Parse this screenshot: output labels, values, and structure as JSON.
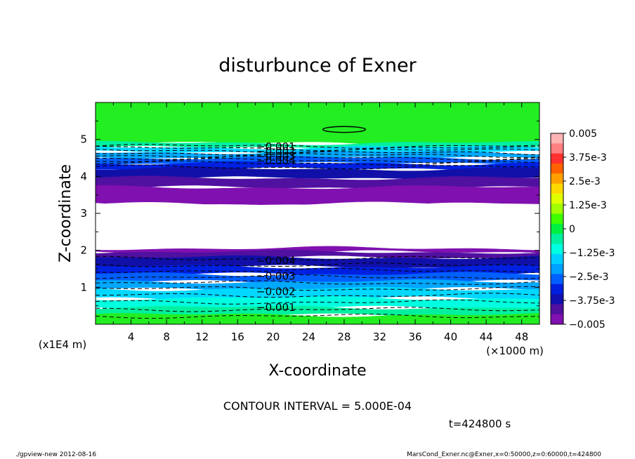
{
  "chart_data": {
    "type": "contour",
    "title": "disturbunce of Exner",
    "xlabel": "X-coordinate",
    "ylabel": "Z-coordinate",
    "x_unit": "(×1000 m)",
    "y_unit": "(x1E4 m)",
    "xlim": [
      0,
      50
    ],
    "ylim": [
      0,
      6
    ],
    "x_ticks": [
      "4",
      "8",
      "12",
      "16",
      "20",
      "24",
      "28",
      "32",
      "36",
      "40",
      "44",
      "48"
    ],
    "y_ticks": [
      "1",
      "2",
      "3",
      "4",
      "5"
    ],
    "contour_interval": "CONTOUR INTERVAL = 5.000E-04",
    "time_label": "t=424800 s",
    "footer_left": "./gpview-new   2012-08-16",
    "footer_right": "MarsCond_Exner.nc@Exner,x=0:50000,z=0:60000,t=424800",
    "colorbar": {
      "labels": [
        "0.005",
        "3.75e-3",
        "2.5e-3",
        "1.25e-3",
        "0",
        "−1.25e-3",
        "−2.5e-3",
        "−3.75e-3",
        "−0.005"
      ],
      "colors": [
        "#ffb4b4",
        "#ff8080",
        "#ff3030",
        "#ff6000",
        "#ffa000",
        "#ffd800",
        "#e0ff00",
        "#a0ff00",
        "#40ff00",
        "#00f040",
        "#00f0a0",
        "#00ffe0",
        "#00d0ff",
        "#00a0ff",
        "#0060ff",
        "#0020e0",
        "#1010b0",
        "#5010a0",
        "#8010b0"
      ]
    },
    "contour_labels": [
      {
        "text": "−0.001",
        "x": 20,
        "y": 4.8
      },
      {
        "text": "−0.002",
        "x": 20,
        "y": 4.68
      },
      {
        "text": "−0.003",
        "x": 20,
        "y": 4.55
      },
      {
        "text": "−0.004",
        "x": 20,
        "y": 4.42
      },
      {
        "text": "−0.004",
        "x": 20,
        "y": 1.72
      },
      {
        "text": "−0.003",
        "x": 20,
        "y": 1.3
      },
      {
        "text": "−0.002",
        "x": 20,
        "y": 0.88
      },
      {
        "text": "−0.001",
        "x": 20,
        "y": 0.46
      }
    ],
    "bands": [
      {
        "z0": 4.9,
        "z1": 6.0,
        "color": "#22ee22"
      },
      {
        "z0": 4.78,
        "z1": 4.9,
        "color": "#00f0a0"
      },
      {
        "z0": 4.65,
        "z1": 4.78,
        "color": "#00d8ff"
      },
      {
        "z0": 4.5,
        "z1": 4.65,
        "color": "#00a8ff"
      },
      {
        "z0": 4.35,
        "z1": 4.5,
        "color": "#0060ff"
      },
      {
        "z0": 4.2,
        "z1": 4.35,
        "color": "#0020e0"
      },
      {
        "z0": 3.95,
        "z1": 4.2,
        "color": "#1010a8"
      },
      {
        "z0": 3.7,
        "z1": 3.95,
        "color": "#5010a0"
      },
      {
        "z0": 3.25,
        "z1": 3.7,
        "color": "#8010b0"
      },
      {
        "z0": 2.05,
        "z1": 3.25,
        "color": "#ffffff"
      },
      {
        "z0": 1.95,
        "z1": 2.05,
        "color": "#8010b0"
      },
      {
        "z0": 1.8,
        "z1": 1.95,
        "color": "#5010a0"
      },
      {
        "z0": 1.55,
        "z1": 1.8,
        "color": "#1010a8"
      },
      {
        "z0": 1.35,
        "z1": 1.55,
        "color": "#0020e0"
      },
      {
        "z0": 1.15,
        "z1": 1.35,
        "color": "#0060ff"
      },
      {
        "z0": 0.95,
        "z1": 1.15,
        "color": "#00a8ff"
      },
      {
        "z0": 0.7,
        "z1": 0.95,
        "color": "#00d8ff"
      },
      {
        "z0": 0.45,
        "z1": 0.7,
        "color": "#00ffe0"
      },
      {
        "z0": 0.25,
        "z1": 0.45,
        "color": "#00f0a0"
      },
      {
        "z0": 0.0,
        "z1": 0.25,
        "color": "#22ee22"
      }
    ],
    "dashed_levels": [
      4.82,
      4.76,
      4.7,
      4.63,
      4.57,
      4.5,
      4.43,
      4.36,
      4.25,
      1.78,
      1.6,
      1.45,
      1.28,
      1.12,
      0.96,
      0.78,
      0.6,
      0.4,
      0.22
    ],
    "positive_contour": {
      "x": 28,
      "y": 5.27,
      "rx": 2.4,
      "ry": 0.08
    }
  }
}
